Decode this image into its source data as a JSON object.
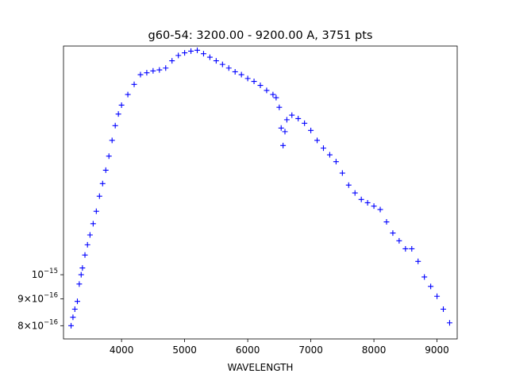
{
  "chart_data": {
    "type": "scatter",
    "title": "g60-54: 3200.00 - 9200.00 A, 3751 pts",
    "xlabel": "WAVELENGTH",
    "ylabel": "",
    "marker": "+",
    "color": "#0000ff",
    "xlim": [
      3080,
      9320
    ],
    "ylim": [
      7.55e-16,
      2.72e-15
    ],
    "yscale": "log",
    "grid": false,
    "x_ticks": [
      {
        "value": 4000,
        "label": "4000"
      },
      {
        "value": 5000,
        "label": "5000"
      },
      {
        "value": 6000,
        "label": "6000"
      },
      {
        "value": 7000,
        "label": "7000"
      },
      {
        "value": 8000,
        "label": "8000"
      },
      {
        "value": 9000,
        "label": "9000"
      }
    ],
    "y_ticks": [
      {
        "value": 1e-15,
        "mantissa": "",
        "base": "10",
        "exp": "−15"
      },
      {
        "value": 9e-16,
        "mantissa": "9×",
        "base": "10",
        "exp": "−16"
      },
      {
        "value": 8e-16,
        "mantissa": "8×",
        "base": "10",
        "exp": "−16"
      }
    ],
    "series": [
      {
        "x": [
          3200,
          3230,
          3260,
          3300,
          3330,
          3360,
          3380,
          3420,
          3460,
          3500,
          3550,
          3600,
          3650,
          3700,
          3750,
          3800,
          3850,
          3900,
          3950,
          4000,
          4100,
          4200,
          4300,
          4400,
          4500,
          4600,
          4700,
          4800,
          4900,
          5000,
          5100,
          5200,
          5300,
          5400,
          5500,
          5600,
          5700,
          5800,
          5900,
          6000,
          6100,
          6200,
          6300,
          6400,
          6450,
          6500,
          6530,
          6560,
          6590,
          6620,
          6700,
          6800,
          6900,
          7000,
          7100,
          7200,
          7300,
          7400,
          7500,
          7600,
          7700,
          7800,
          7900,
          8000,
          8100,
          8200,
          8300,
          8400,
          8500,
          8600,
          8700,
          8800,
          8900,
          9000,
          9100,
          9200
        ],
        "y": [
          8e-16,
          8.3e-16,
          8.6e-16,
          8.9e-16,
          9.6e-16,
          1e-15,
          1.03e-15,
          1.09e-15,
          1.14e-15,
          1.19e-15,
          1.25e-15,
          1.32e-15,
          1.41e-15,
          1.49e-15,
          1.58e-15,
          1.68e-15,
          1.8e-15,
          1.92e-15,
          2.02e-15,
          2.1e-15,
          2.2e-15,
          2.3e-15,
          2.4e-15,
          2.42e-15,
          2.44e-15,
          2.45e-15,
          2.47e-15,
          2.55e-15,
          2.61e-15,
          2.64e-15,
          2.66e-15,
          2.67e-15,
          2.63e-15,
          2.59e-15,
          2.55e-15,
          2.51e-15,
          2.47e-15,
          2.43e-15,
          2.4e-15,
          2.36e-15,
          2.33e-15,
          2.29e-15,
          2.24e-15,
          2.2e-15,
          2.17e-15,
          2.08e-15,
          1.9e-15,
          1.76e-15,
          1.87e-15,
          1.97e-15,
          2.01e-15,
          1.98e-15,
          1.94e-15,
          1.88e-15,
          1.8e-15,
          1.74e-15,
          1.69e-15,
          1.64e-15,
          1.56e-15,
          1.48e-15,
          1.43e-15,
          1.39e-15,
          1.37e-15,
          1.35e-15,
          1.33e-15,
          1.26e-15,
          1.2e-15,
          1.16e-15,
          1.12e-15,
          1.12e-15,
          1.06e-15,
          9.9e-16,
          9.5e-16,
          9.1e-16,
          8.6e-16,
          8.1e-16
        ]
      }
    ]
  }
}
